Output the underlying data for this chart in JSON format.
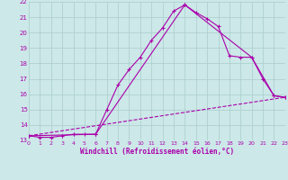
{
  "xlabel": "Windchill (Refroidissement éolien,°C)",
  "bg_color": "#cce8e8",
  "grid_color": "#aacccc",
  "line_color": "#aa00aa",
  "xmin": 0,
  "xmax": 23,
  "ymin": 13,
  "ymax": 22,
  "line1_x": [
    0,
    1,
    2,
    3,
    4,
    5,
    6,
    7,
    8,
    9,
    10,
    11,
    12,
    13,
    14,
    15,
    16,
    17,
    18,
    19,
    20,
    21,
    22,
    23
  ],
  "line1_y": [
    13.3,
    13.2,
    13.2,
    13.3,
    13.4,
    13.4,
    13.4,
    15.0,
    16.6,
    17.6,
    18.4,
    19.5,
    20.3,
    21.4,
    21.8,
    21.3,
    20.9,
    20.4,
    18.5,
    18.4,
    18.4,
    17.0,
    15.9,
    15.8
  ],
  "line2_x": [
    0,
    6,
    14,
    20,
    22,
    23
  ],
  "line2_y": [
    13.3,
    13.4,
    21.8,
    18.4,
    15.9,
    15.8
  ],
  "line3_x": [
    0,
    23
  ],
  "line3_y": [
    13.3,
    15.8
  ],
  "yticks": [
    13,
    14,
    15,
    16,
    17,
    18,
    19,
    20,
    21,
    22
  ],
  "xticks": [
    0,
    1,
    2,
    3,
    4,
    5,
    6,
    7,
    8,
    9,
    10,
    11,
    12,
    13,
    14,
    15,
    16,
    17,
    18,
    19,
    20,
    21,
    22,
    23
  ],
  "xtick_labels": [
    "0",
    "1",
    "2",
    "3",
    "4",
    "5",
    "6",
    "7",
    "8",
    "9",
    "10",
    "11",
    "12",
    "13",
    "14",
    "15",
    "16",
    "17",
    "18",
    "19",
    "20",
    "21",
    "22",
    "23"
  ]
}
